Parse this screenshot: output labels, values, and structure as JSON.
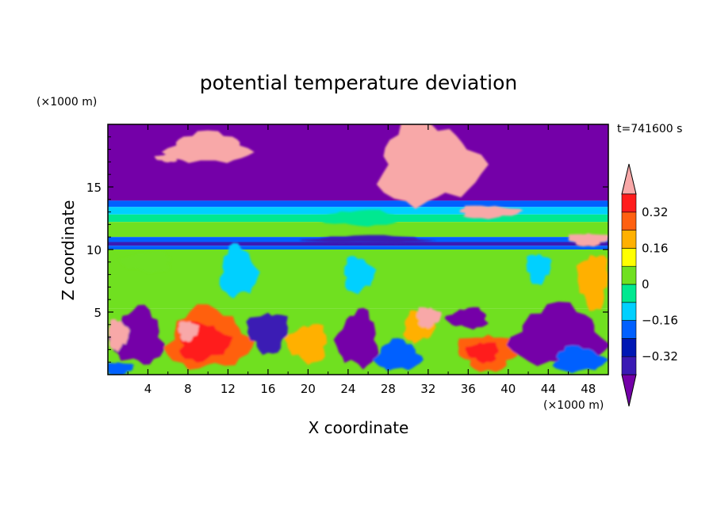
{
  "chart_data": {
    "type": "heatmap",
    "title": "potential temperature deviation",
    "xlabel": "X coordinate",
    "ylabel": "Z coordinate",
    "x_unit_label": "(×1000 m)",
    "y_unit_label": "(×1000 m)",
    "time_label": "t=741600 s",
    "xlim": [
      0,
      50
    ],
    "ylim": [
      0,
      20
    ],
    "x_ticks": [
      4,
      8,
      12,
      16,
      20,
      24,
      28,
      32,
      36,
      40,
      44,
      48
    ],
    "y_ticks": [
      5,
      10,
      15
    ],
    "colorbar": {
      "colors": [
        "#7400a8",
        "#3a1ab4",
        "#0018b4",
        "#0060ff",
        "#00d0ff",
        "#00e890",
        "#70e020",
        "#ffff00",
        "#ffb000",
        "#ff6010",
        "#ff1c1c",
        "#f8a8a8"
      ],
      "boundaries": [
        -0.4,
        -0.32,
        -0.24,
        -0.16,
        -0.08,
        0,
        0.08,
        0.16,
        0.24,
        0.32,
        0.4
      ],
      "tick_labels": [
        {
          "value": 0.32,
          "label": "0.32"
        },
        {
          "value": 0.16,
          "label": "0.16"
        },
        {
          "value": 0,
          "label": "0"
        },
        {
          "value": -0.16,
          "label": "−0.16"
        },
        {
          "value": -0.32,
          "label": "−0.32"
        }
      ]
    },
    "regions": [
      {
        "z": [
          13.9,
          20
        ],
        "level": -0.42
      },
      {
        "z": [
          13.4,
          13.9
        ],
        "level": -0.2
      },
      {
        "z": [
          12.8,
          13.4
        ],
        "level": -0.1
      },
      {
        "z": [
          12.2,
          12.8
        ],
        "level": -0.05
      },
      {
        "z": [
          11.0,
          12.2
        ],
        "level": 0.02
      },
      {
        "z": [
          10.6,
          11.0
        ],
        "level": -0.2
      },
      {
        "z": [
          10.3,
          10.6
        ],
        "level": -0.36
      },
      {
        "z": [
          10.0,
          10.3
        ],
        "level": -0.18
      },
      {
        "z": [
          5.3,
          10.0
        ],
        "level": 0.05
      },
      {
        "z": [
          0,
          5.3
        ],
        "level": 0.05
      }
    ],
    "patches": [
      {
        "x": 10,
        "z": 18.1,
        "rx": 4,
        "rz": 1.2,
        "level": 0.45
      },
      {
        "x": 32,
        "z": 16.8,
        "rx": 5,
        "rz": 3.2,
        "level": 0.45
      },
      {
        "x": 38,
        "z": 13.0,
        "rx": 3,
        "rz": 0.5,
        "level": 0.45
      },
      {
        "x": 48,
        "z": 10.8,
        "rx": 2,
        "rz": 0.5,
        "level": 0.45
      },
      {
        "x": 6,
        "z": 17.3,
        "rx": 1.2,
        "rz": 0.3,
        "level": 0.45
      },
      {
        "x": 25,
        "z": 12.5,
        "rx": 4,
        "rz": 0.6,
        "level": -0.05
      },
      {
        "x": 26,
        "z": 10.8,
        "rx": 6,
        "rz": 0.3,
        "level": -0.36
      },
      {
        "x": 13,
        "z": 8.2,
        "rx": 1.8,
        "rz": 2.0,
        "level": -0.1
      },
      {
        "x": 25,
        "z": 8.0,
        "rx": 1.5,
        "rz": 1.4,
        "level": -0.1
      },
      {
        "x": 43,
        "z": 8.5,
        "rx": 1.2,
        "rz": 1.2,
        "level": -0.1
      },
      {
        "x": 48.5,
        "z": 7.5,
        "rx": 1.5,
        "rz": 2.2,
        "level": 0.18
      },
      {
        "x": 4,
        "z": 9.0,
        "rx": 2.5,
        "rz": 0.8,
        "level": 0.02
      },
      {
        "x": 3,
        "z": 3.0,
        "rx": 2.5,
        "rz": 2.2,
        "level": -0.42
      },
      {
        "x": 10,
        "z": 2.8,
        "rx": 4,
        "rz": 2.4,
        "level": 0.28
      },
      {
        "x": 9.5,
        "z": 2.6,
        "rx": 2.5,
        "rz": 1.5,
        "level": 0.36
      },
      {
        "x": 8,
        "z": 3.5,
        "rx": 1,
        "rz": 0.8,
        "level": 0.45
      },
      {
        "x": 16,
        "z": 3.4,
        "rx": 2,
        "rz": 1.6,
        "level": -0.36
      },
      {
        "x": 20,
        "z": 2.5,
        "rx": 2,
        "rz": 1.5,
        "level": 0.2
      },
      {
        "x": 25,
        "z": 2.8,
        "rx": 2,
        "rz": 2.2,
        "level": -0.42
      },
      {
        "x": 29,
        "z": 1.5,
        "rx": 2.2,
        "rz": 1.2,
        "level": -0.2
      },
      {
        "x": 31,
        "z": 3.8,
        "rx": 1.5,
        "rz": 1.2,
        "level": 0.2
      },
      {
        "x": 32,
        "z": 4.6,
        "rx": 1.2,
        "rz": 0.8,
        "level": 0.45
      },
      {
        "x": 38,
        "z": 1.8,
        "rx": 3,
        "rz": 1.4,
        "level": 0.3
      },
      {
        "x": 37.5,
        "z": 1.8,
        "rx": 1.6,
        "rz": 0.8,
        "level": 0.38
      },
      {
        "x": 36,
        "z": 4.5,
        "rx": 2,
        "rz": 0.8,
        "level": -0.42
      },
      {
        "x": 45,
        "z": 3.0,
        "rx": 4.5,
        "rz": 2.4,
        "level": -0.42
      },
      {
        "x": 47,
        "z": 1.2,
        "rx": 2.5,
        "rz": 1.0,
        "level": -0.24
      },
      {
        "x": 1,
        "z": 3.2,
        "rx": 1,
        "rz": 1.2,
        "level": 0.45
      },
      {
        "x": 1,
        "z": 0.5,
        "rx": 1.5,
        "rz": 0.5,
        "level": -0.2
      }
    ]
  }
}
